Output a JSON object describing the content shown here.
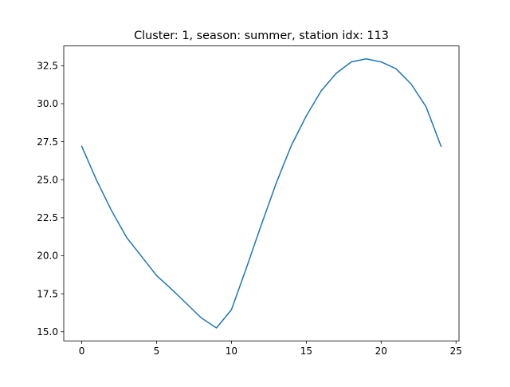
{
  "chart_data": {
    "type": "line",
    "title": "Cluster: 1, season: summer, station idx: 113",
    "xlabel": "",
    "ylabel": "",
    "x": [
      0,
      1,
      2,
      3,
      4,
      5,
      6,
      7,
      8,
      9,
      10,
      11,
      12,
      13,
      14,
      15,
      16,
      17,
      18,
      19,
      20,
      21,
      22,
      23,
      24
    ],
    "series": [
      {
        "values": [
          27.2,
          24.95,
          22.95,
          21.2,
          19.95,
          18.7,
          17.8,
          16.85,
          15.9,
          15.25,
          16.45,
          19.2,
          22.05,
          24.8,
          27.25,
          29.2,
          30.85,
          32.0,
          32.75,
          32.95,
          32.75,
          32.3,
          31.3,
          29.8,
          27.2
        ],
        "color": "#1f77b4"
      }
    ],
    "xlim": [
      -1.2,
      25.2
    ],
    "ylim": [
      14.4,
      33.8
    ],
    "xticks": [
      0,
      5,
      10,
      15,
      20,
      25
    ],
    "yticks": [
      15.0,
      17.5,
      20.0,
      22.5,
      25.0,
      27.5,
      30.0,
      32.5
    ],
    "xtick_labels": [
      "0",
      "5",
      "10",
      "15",
      "20",
      "25"
    ],
    "ytick_labels": [
      "15.0",
      "17.5",
      "20.0",
      "22.5",
      "25.0",
      "27.5",
      "30.0",
      "32.5"
    ],
    "grid": false,
    "legend": "none"
  }
}
